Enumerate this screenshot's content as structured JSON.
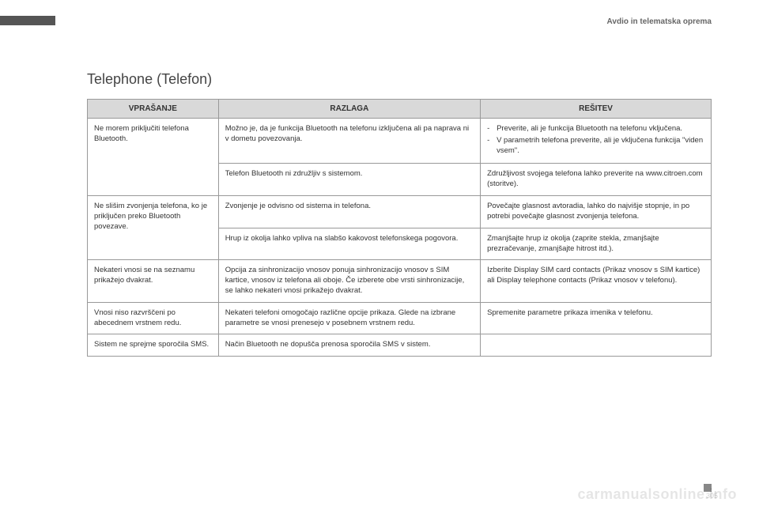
{
  "header": {
    "right_text": "Avdio in telematska oprema"
  },
  "title": "Telephone (Telefon)",
  "table": {
    "columns": [
      "VPRAŠANJE",
      "RAZLAGA",
      "REŠITEV"
    ],
    "rows": [
      {
        "q": "Ne morem priključiti telefona Bluetooth.",
        "r": "Možno je, da je funkcija Bluetooth na telefonu izključena ali pa naprava ni v dometu povezovanja.",
        "s_list": [
          "Preverite, ali je funkcija Bluetooth na telefonu vključena.",
          "V parametrih telefona preverite, ali je vključena funkcija \"viden vsem\"."
        ],
        "q_rowspan": 2
      },
      {
        "r": "Telefon Bluetooth ni združljiv s sistemom.",
        "s": "Združljivost svojega telefona lahko preverite na www.citroen.com (storitve)."
      },
      {
        "q": "Ne slišim zvonjenja telefona, ko je priključen preko Bluetooth povezave.",
        "r": "Zvonjenje je odvisno od sistema in telefona.",
        "s": "Povečajte glasnost avtoradia, lahko do najvišje stopnje, in po potrebi povečajte glasnost zvonjenja telefona.",
        "q_rowspan": 2
      },
      {
        "r": "Hrup iz okolja lahko vpliva na slabšo kakovost telefonskega pogovora.",
        "s": "Zmanjšajte hrup iz okolja (zaprite stekla, zmanjšajte prezračevanje, zmanjšajte hitrost itd.)."
      },
      {
        "q": "Nekateri vnosi se na seznamu prikažejo dvakrat.",
        "r": "Opcija za sinhronizacijo vnosov ponuja sinhronizacijo vnosov s SIM kartice, vnosov iz telefona ali oboje. Če izberete obe vrsti sinhronizacije, se lahko nekateri vnosi prikažejo dvakrat.",
        "s": "Izberite Display SIM card contacts (Prikaz vnosov s SIM kartice) ali Display telephone contacts (Prikaz vnosov v telefonu)."
      },
      {
        "q": "Vnosi niso razvrščeni po abecednem vrstnem redu.",
        "r": "Nekateri telefoni omogočajo različne opcije prikaza. Glede na izbrane parametre se vnosi prenesejo v posebnem vrstnem redu.",
        "s": "Spremenite parametre prikaza imenika v telefonu."
      },
      {
        "q": "Sistem ne sprejme sporočila SMS.",
        "r": "Način Bluetooth ne dopušča prenosa sporočila SMS v sistem.",
        "s": ""
      }
    ]
  },
  "footer": {
    "watermark": "carmanualsonline.info",
    "page_number": "305"
  },
  "colors": {
    "header_bg": "#d9d9d9",
    "border": "#999999",
    "text": "#333333",
    "bar": "#555555",
    "watermark": "rgba(0,0,0,0.10)"
  }
}
